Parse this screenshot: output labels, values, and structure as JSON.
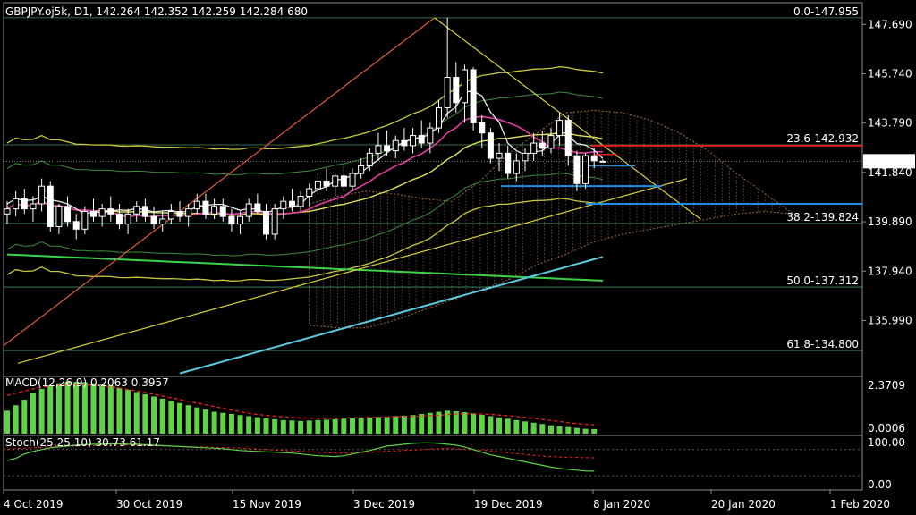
{
  "colors": {
    "background": "#000000",
    "frame": "#8c8c8c",
    "fib": "#5ec28a",
    "price_tag_bg": "#ffffff",
    "price_tag_fg": "#000000",
    "macd_hist": "#5fd247",
    "macd_signal": "#ff2020",
    "stoch_main": "#5fd247",
    "stoch_signal": "#ff2020"
  },
  "chart_data": [
    {
      "type": "candlestick",
      "header": "GBPJPY.oj5k, D1, 142.264 142.352 142.259 142.284 680",
      "current_price": "142.284",
      "y_axis": {
        "ticks": [
          147.69,
          145.74,
          143.79,
          141.84,
          139.89,
          137.94,
          135.99
        ],
        "tick_labels": [
          "147.690",
          "145.740",
          "143.790",
          "141.840",
          "139.890",
          "137.940",
          "135.990"
        ],
        "range": [
          133.78,
          148.55
        ]
      },
      "x_axis": {
        "tick_labels": [
          "4 Oct 2019",
          "30 Oct 2019",
          "15 Nov 2019",
          "3 Dec 2019",
          "19 Dec 2019",
          "8 Jan 2020",
          "20 Jan 2020",
          "1 Feb 2020"
        ]
      },
      "fibonacci": [
        {
          "label": "0.0-147.955",
          "value": 147.955
        },
        {
          "label": "23.6-142.932",
          "value": 142.932
        },
        {
          "label": "38.2-139.824",
          "value": 139.824
        },
        {
          "label": "50.0-137.312",
          "value": 137.312
        },
        {
          "label": "61.8-134.800",
          "value": 134.8
        }
      ],
      "candles": [
        {
          "o": 140.2,
          "h": 140.7,
          "l": 139.8,
          "c": 140.4
        },
        {
          "o": 140.4,
          "h": 141.1,
          "l": 140.1,
          "c": 140.8
        },
        {
          "o": 140.8,
          "h": 141.2,
          "l": 140.2,
          "c": 140.4
        },
        {
          "o": 140.4,
          "h": 140.9,
          "l": 139.9,
          "c": 140.6
        },
        {
          "o": 140.6,
          "h": 141.6,
          "l": 140.3,
          "c": 141.3
        },
        {
          "o": 141.3,
          "h": 141.5,
          "l": 139.5,
          "c": 139.7
        },
        {
          "o": 139.7,
          "h": 140.6,
          "l": 139.4,
          "c": 140.5
        },
        {
          "o": 140.5,
          "h": 140.9,
          "l": 139.7,
          "c": 139.9
        },
        {
          "o": 139.9,
          "h": 140.2,
          "l": 139.2,
          "c": 139.6
        },
        {
          "o": 139.6,
          "h": 140.5,
          "l": 139.4,
          "c": 140.3
        },
        {
          "o": 140.3,
          "h": 140.8,
          "l": 139.9,
          "c": 140.1
        },
        {
          "o": 140.1,
          "h": 140.6,
          "l": 139.7,
          "c": 140.4
        },
        {
          "o": 140.4,
          "h": 140.9,
          "l": 139.9,
          "c": 140.2
        },
        {
          "o": 140.2,
          "h": 140.6,
          "l": 139.6,
          "c": 139.8
        },
        {
          "o": 139.8,
          "h": 140.4,
          "l": 139.4,
          "c": 140.2
        },
        {
          "o": 140.2,
          "h": 140.7,
          "l": 139.9,
          "c": 140.5
        },
        {
          "o": 140.5,
          "h": 140.8,
          "l": 139.9,
          "c": 140.1
        },
        {
          "o": 140.1,
          "h": 140.5,
          "l": 139.6,
          "c": 139.8
        },
        {
          "o": 139.8,
          "h": 140.3,
          "l": 139.5,
          "c": 140.0
        },
        {
          "o": 140.0,
          "h": 140.6,
          "l": 139.8,
          "c": 140.3
        },
        {
          "o": 140.3,
          "h": 140.7,
          "l": 139.9,
          "c": 140.1
        },
        {
          "o": 140.1,
          "h": 140.6,
          "l": 139.7,
          "c": 140.4
        },
        {
          "o": 140.4,
          "h": 141.0,
          "l": 140.2,
          "c": 140.7
        },
        {
          "o": 140.7,
          "h": 141.0,
          "l": 140.0,
          "c": 140.2
        },
        {
          "o": 140.2,
          "h": 140.8,
          "l": 140.0,
          "c": 140.5
        },
        {
          "o": 140.5,
          "h": 140.8,
          "l": 139.9,
          "c": 140.1
        },
        {
          "o": 140.1,
          "h": 140.4,
          "l": 139.5,
          "c": 139.8
        },
        {
          "o": 139.8,
          "h": 140.3,
          "l": 139.4,
          "c": 140.1
        },
        {
          "o": 140.1,
          "h": 140.8,
          "l": 139.9,
          "c": 140.6
        },
        {
          "o": 140.6,
          "h": 141.0,
          "l": 140.2,
          "c": 140.3
        },
        {
          "o": 140.3,
          "h": 140.6,
          "l": 139.2,
          "c": 139.4
        },
        {
          "o": 139.4,
          "h": 140.6,
          "l": 139.2,
          "c": 140.4
        },
        {
          "o": 140.4,
          "h": 140.9,
          "l": 140.0,
          "c": 140.7
        },
        {
          "o": 140.7,
          "h": 141.2,
          "l": 140.3,
          "c": 140.5
        },
        {
          "o": 140.5,
          "h": 141.1,
          "l": 140.3,
          "c": 140.9
        },
        {
          "o": 140.9,
          "h": 141.4,
          "l": 140.5,
          "c": 141.2
        },
        {
          "o": 141.2,
          "h": 141.8,
          "l": 141.0,
          "c": 141.5
        },
        {
          "o": 141.5,
          "h": 142.0,
          "l": 141.1,
          "c": 141.3
        },
        {
          "o": 141.3,
          "h": 141.8,
          "l": 140.9,
          "c": 141.7
        },
        {
          "o": 141.7,
          "h": 142.1,
          "l": 141.1,
          "c": 141.3
        },
        {
          "o": 141.3,
          "h": 142.0,
          "l": 141.1,
          "c": 141.8
        },
        {
          "o": 141.8,
          "h": 142.4,
          "l": 141.6,
          "c": 142.1
        },
        {
          "o": 142.1,
          "h": 142.8,
          "l": 141.9,
          "c": 142.6
        },
        {
          "o": 142.6,
          "h": 143.4,
          "l": 142.3,
          "c": 142.9
        },
        {
          "o": 142.9,
          "h": 143.5,
          "l": 142.5,
          "c": 142.7
        },
        {
          "o": 142.7,
          "h": 143.3,
          "l": 142.4,
          "c": 143.1
        },
        {
          "o": 143.1,
          "h": 143.6,
          "l": 142.7,
          "c": 142.9
        },
        {
          "o": 142.9,
          "h": 143.6,
          "l": 142.6,
          "c": 143.3
        },
        {
          "o": 143.3,
          "h": 143.9,
          "l": 142.8,
          "c": 143.0
        },
        {
          "o": 143.0,
          "h": 143.8,
          "l": 142.6,
          "c": 143.6
        },
        {
          "o": 143.6,
          "h": 144.7,
          "l": 143.4,
          "c": 144.4
        },
        {
          "o": 144.4,
          "h": 147.955,
          "l": 144.0,
          "c": 145.6
        },
        {
          "o": 145.6,
          "h": 146.2,
          "l": 144.2,
          "c": 144.6
        },
        {
          "o": 144.6,
          "h": 146.1,
          "l": 143.8,
          "c": 145.9
        },
        {
          "o": 145.9,
          "h": 146.0,
          "l": 143.5,
          "c": 143.8
        },
        {
          "o": 143.8,
          "h": 144.1,
          "l": 142.8,
          "c": 143.4
        },
        {
          "o": 143.4,
          "h": 143.6,
          "l": 142.2,
          "c": 142.4
        },
        {
          "o": 142.4,
          "h": 143.0,
          "l": 141.9,
          "c": 142.6
        },
        {
          "o": 142.6,
          "h": 142.9,
          "l": 141.6,
          "c": 141.8
        },
        {
          "o": 141.8,
          "h": 142.6,
          "l": 141.5,
          "c": 142.3
        },
        {
          "o": 142.3,
          "h": 142.8,
          "l": 141.9,
          "c": 142.6
        },
        {
          "o": 142.6,
          "h": 143.4,
          "l": 142.3,
          "c": 143.0
        },
        {
          "o": 143.0,
          "h": 143.5,
          "l": 142.5,
          "c": 142.8
        },
        {
          "o": 142.8,
          "h": 143.6,
          "l": 142.6,
          "c": 143.3
        },
        {
          "o": 143.3,
          "h": 144.2,
          "l": 142.9,
          "c": 143.9
        },
        {
          "o": 143.9,
          "h": 144.1,
          "l": 142.1,
          "c": 142.5
        },
        {
          "o": 142.5,
          "h": 142.7,
          "l": 141.1,
          "c": 141.4
        },
        {
          "o": 141.4,
          "h": 142.6,
          "l": 141.2,
          "c": 142.5
        },
        {
          "o": 142.5,
          "h": 142.8,
          "l": 142.0,
          "c": 142.3
        },
        {
          "o": 142.264,
          "h": 142.352,
          "l": 142.259,
          "c": 142.284
        }
      ]
    },
    {
      "type": "bar",
      "title": "MACD(12,26,9) 0.2063 0.3957",
      "y_axis": {
        "tick_labels": [
          "2.3709",
          "0.0006"
        ],
        "range": [
          0,
          2.3709
        ]
      },
      "series": [
        {
          "values": [
            1.05,
            1.3,
            1.55,
            1.85,
            2.05,
            2.2,
            2.3,
            2.37,
            2.37,
            2.35,
            2.3,
            2.25,
            2.2,
            2.1,
            2.0,
            1.9,
            1.8,
            1.7,
            1.6,
            1.5,
            1.4,
            1.3,
            1.2,
            1.1,
            1.0,
            0.95,
            0.9,
            0.85,
            0.8,
            0.75,
            0.7,
            0.66,
            0.62,
            0.6,
            0.58,
            0.6,
            0.62,
            0.64,
            0.66,
            0.68,
            0.7,
            0.72,
            0.74,
            0.76,
            0.78,
            0.8,
            0.82,
            0.85,
            0.9,
            0.95,
            1.0,
            1.05,
            1.02,
            0.98,
            0.92,
            0.86,
            0.8,
            0.74,
            0.68,
            0.62,
            0.56,
            0.5,
            0.44,
            0.38,
            0.34,
            0.3,
            0.26,
            0.22,
            0.21
          ]
        },
        {
          "values": [
            1.75,
            1.85,
            1.95,
            2.05,
            2.12,
            2.18,
            2.22,
            2.24,
            2.25,
            2.24,
            2.22,
            2.18,
            2.14,
            2.08,
            2.02,
            1.95,
            1.88,
            1.8,
            1.72,
            1.64,
            1.56,
            1.48,
            1.4,
            1.32,
            1.24,
            1.16,
            1.08,
            1.0,
            0.93,
            0.88,
            0.84,
            0.8,
            0.77,
            0.74,
            0.72,
            0.71,
            0.7,
            0.7,
            0.7,
            0.71,
            0.72,
            0.73,
            0.74,
            0.75,
            0.76,
            0.77,
            0.78,
            0.79,
            0.8,
            0.82,
            0.84,
            0.87,
            0.9,
            0.91,
            0.91,
            0.9,
            0.88,
            0.85,
            0.82,
            0.78,
            0.74,
            0.7,
            0.65,
            0.6,
            0.55,
            0.5,
            0.46,
            0.42,
            0.4
          ]
        }
      ]
    },
    {
      "type": "line",
      "title": "Stoch(25,25,10) 30.73 61.17",
      "y_axis": {
        "tick_labels": [
          "100.00",
          "0.00"
        ],
        "range": [
          0,
          100
        ]
      },
      "series": [
        {
          "values": [
            55,
            60,
            70,
            76,
            80,
            84,
            86,
            88,
            90,
            91,
            92,
            92,
            93,
            93,
            92,
            92,
            91,
            90,
            89,
            88,
            87,
            86,
            85,
            84,
            83,
            82,
            80,
            78,
            77,
            76,
            75,
            74,
            73,
            72,
            70,
            68,
            66,
            65,
            64,
            66,
            70,
            74,
            78,
            83,
            88,
            90,
            92,
            94,
            95,
            95,
            94,
            92,
            90,
            86,
            80,
            74,
            68,
            64,
            60,
            56,
            52,
            48,
            44,
            40,
            37,
            35,
            33,
            31,
            30.73
          ]
        },
        {
          "values": [
            80,
            82,
            83,
            84,
            85,
            86,
            87,
            88,
            88,
            89,
            89,
            89,
            90,
            90,
            90,
            90,
            89,
            89,
            88,
            88,
            87,
            87,
            86,
            86,
            85,
            84,
            84,
            83,
            82,
            81,
            80,
            79,
            78,
            77,
            76,
            75,
            74,
            73,
            72,
            72,
            72,
            73,
            74,
            75,
            76,
            77,
            78,
            79,
            80,
            81,
            82,
            82,
            82,
            81,
            80,
            79,
            77,
            75,
            73,
            71,
            69,
            67,
            65,
            64,
            63,
            62,
            62,
            61.5,
            61.17
          ]
        }
      ]
    }
  ]
}
